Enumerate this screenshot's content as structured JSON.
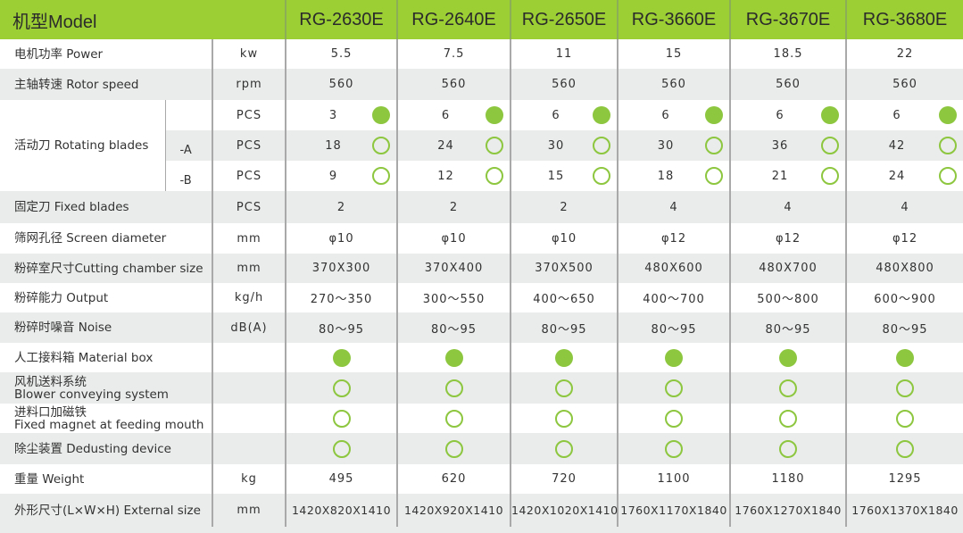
{
  "header": {
    "title": "机型Model",
    "models": [
      "RG-2630E",
      "RG-2640E",
      "RG-2650E",
      "RG-3660E",
      "RG-3670E",
      "RG-3680E"
    ]
  },
  "colors": {
    "accent": "#9ccf34",
    "marker": "#8dc63f",
    "row_alt": "#e9ecea"
  },
  "rows": [
    {
      "label": "电机功率 Power",
      "unit": "kw",
      "values": [
        "5.5",
        "7.5",
        "11",
        "15",
        "18.5",
        "22"
      ]
    },
    {
      "label": "主轴转速 Rotor speed",
      "unit": "rpm",
      "values": [
        "560",
        "560",
        "560",
        "560",
        "560",
        "560"
      ]
    },
    {
      "label": "活动刀 Rotating blades",
      "group": true,
      "subrows": [
        {
          "sub": "",
          "unit": "PCS",
          "values": [
            "3",
            "6",
            "6",
            "6",
            "6",
            "6"
          ],
          "marker": "filled"
        },
        {
          "sub": "-A",
          "unit": "PCS",
          "values": [
            "18",
            "24",
            "30",
            "30",
            "36",
            "42"
          ],
          "marker": "open"
        },
        {
          "sub": "-B",
          "unit": "PCS",
          "values": [
            "9",
            "12",
            "15",
            "18",
            "21",
            "24"
          ],
          "marker": "open"
        }
      ]
    },
    {
      "label": "固定刀 Fixed blades",
      "unit": "PCS",
      "values": [
        "2",
        "2",
        "2",
        "4",
        "4",
        "4"
      ]
    },
    {
      "label": "筛网孔径 Screen diameter",
      "unit": "mm",
      "values": [
        "φ10",
        "φ10",
        "φ10",
        "φ12",
        "φ12",
        "φ12"
      ]
    },
    {
      "label": "粉碎室尺寸Cutting chamber size",
      "unit": "mm",
      "values": [
        "370X300",
        "370X400",
        "370X500",
        "480X600",
        "480X700",
        "480X800"
      ]
    },
    {
      "label": "粉碎能力 Output",
      "unit": "kg/h",
      "values": [
        "270～350",
        "300～550",
        "400～650",
        "400～700",
        "500～800",
        "600～900"
      ]
    },
    {
      "label": "粉碎时噪音 Noise",
      "unit": "dB(A)",
      "values": [
        "80～95",
        "80～95",
        "80～95",
        "80～95",
        "80～95",
        "80～95"
      ]
    },
    {
      "label": "人工接料箱 Material box",
      "unit": "",
      "markers": [
        "filled",
        "filled",
        "filled",
        "filled",
        "filled",
        "filled"
      ]
    },
    {
      "label": "风机送料系统",
      "label2": "Blower conveying system",
      "unit": "",
      "markers": [
        "open",
        "open",
        "open",
        "open",
        "open",
        "open"
      ]
    },
    {
      "label": "进料口加磁铁",
      "label2": "Fixed magnet at feeding mouth",
      "unit": "",
      "markers": [
        "open",
        "open",
        "open",
        "open",
        "open",
        "open"
      ]
    },
    {
      "label": "除尘装置 Dedusting device",
      "unit": "",
      "markers": [
        "open",
        "open",
        "open",
        "open",
        "open",
        "open"
      ]
    },
    {
      "label": "重量 Weight",
      "unit": "kg",
      "values": [
        "495",
        "620",
        "720",
        "1100",
        "1180",
        "1295"
      ]
    },
    {
      "label": "外形尺寸(L×W×H)  External size",
      "unit": "mm",
      "values": [
        "1420X820X1410",
        "1420X920X1410",
        "1420X1020X1410",
        "1760X1170X1840",
        "1760X1270X1840",
        "1760X1370X1840"
      ]
    }
  ]
}
